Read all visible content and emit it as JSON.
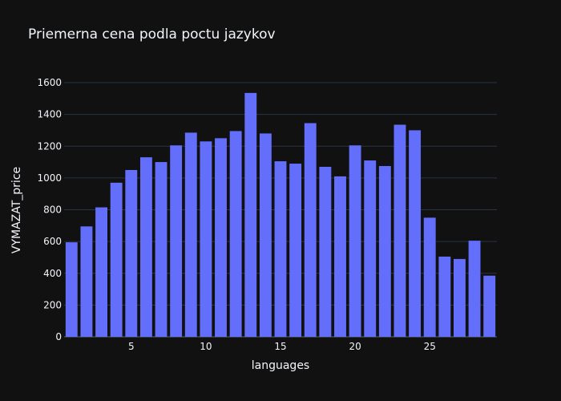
{
  "chart_data": {
    "type": "bar",
    "title": "Priemerna cena podla poctu jazykov",
    "xlabel": "languages",
    "ylabel": "VYMAZAT_price",
    "x": [
      1,
      2,
      3,
      4,
      5,
      6,
      7,
      8,
      9,
      10,
      11,
      12,
      13,
      14,
      15,
      16,
      17,
      18,
      19,
      20,
      21,
      22,
      23,
      24,
      25,
      26,
      27,
      28,
      29
    ],
    "values": [
      595,
      695,
      815,
      970,
      1050,
      1130,
      1100,
      1205,
      1285,
      1230,
      1250,
      1295,
      1535,
      1280,
      1105,
      1090,
      1345,
      1070,
      1010,
      1205,
      1110,
      1075,
      1335,
      1300,
      750,
      505,
      490,
      605,
      385
    ],
    "xlim": [
      0.5,
      29.5
    ],
    "ylim": [
      0,
      1600
    ],
    "x_ticks": [
      5,
      10,
      15,
      20,
      25
    ],
    "y_ticks": [
      0,
      200,
      400,
      600,
      800,
      1000,
      1200,
      1400,
      1600
    ],
    "bar_color": "#636efa",
    "grid": true,
    "background": "#111111",
    "grid_color": "#283442"
  }
}
